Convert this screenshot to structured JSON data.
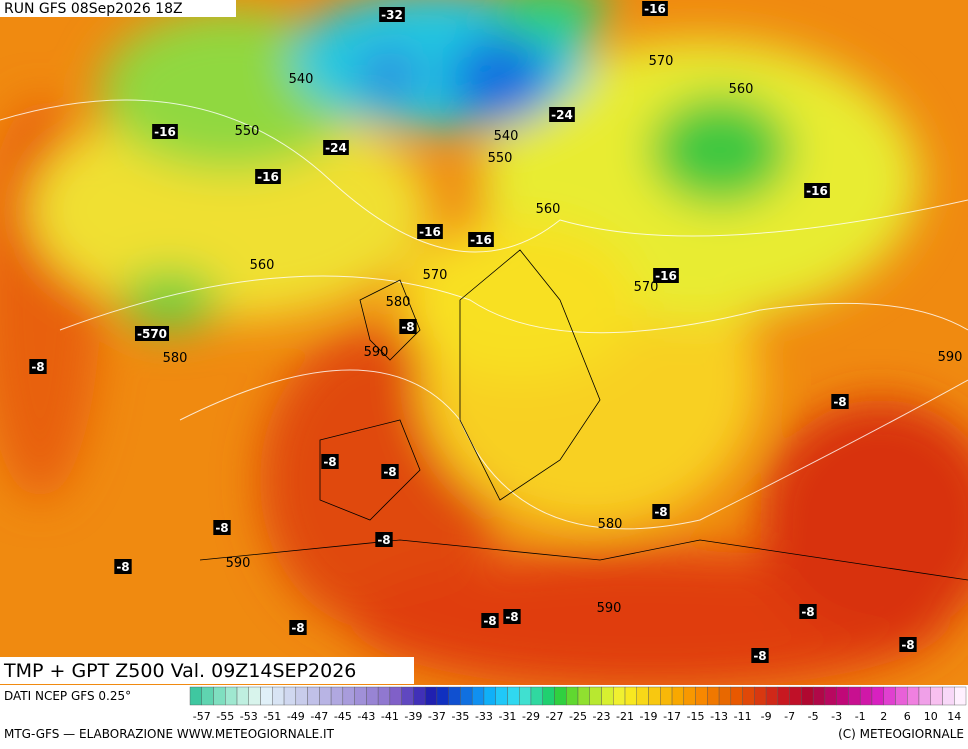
{
  "header": {
    "run": "RUN GFS 08Sep2026 18Z"
  },
  "footer": {
    "title": "TMP + GPT Z500 Val. 09Z14SEP2026",
    "source": "DATI NCEP GFS 0.25°",
    "credit_left": "MTG-GFS — ELABORAZIONE WWW.METEOGIORNALE.IT",
    "credit_right": "(C) METEOGIORNALE"
  },
  "map": {
    "temp_labels": [
      "-32",
      "-16",
      "-16",
      "-24",
      "-16",
      "-24",
      "-16",
      "-16",
      "-16",
      "-16",
      "-8",
      "-8",
      "-8",
      "-8",
      "-8",
      "-8",
      "-8",
      "-8",
      "-8",
      "-8",
      "-8",
      "-8",
      "-8",
      "-8",
      "-8",
      "-570"
    ],
    "height_labels": [
      "540",
      "550",
      "570",
      "560",
      "540",
      "550",
      "560",
      "560",
      "570",
      "570",
      "580",
      "580",
      "590",
      "590",
      "580",
      "590",
      "590"
    ]
  },
  "colorbar": {
    "labels": [
      "-57",
      "-55",
      "-53",
      "-51",
      "-49",
      "-47",
      "-45",
      "-43",
      "-41",
      "-39",
      "-37",
      "-35",
      "-33",
      "-31",
      "-29",
      "-27",
      "-25",
      "-23",
      "-21",
      "-19",
      "-17",
      "-15",
      "-13",
      "-11",
      "-9",
      "-7",
      "-5",
      "-3",
      "-1",
      "2",
      "6",
      "10",
      "14"
    ],
    "colors": [
      "#3fc7a0",
      "#5fd4b0",
      "#7fdfc0",
      "#9fe8d0",
      "#bfefe0",
      "#d8f4ec",
      "#e0f0f8",
      "#d8e4f4",
      "#d0d8f0",
      "#c8cceb",
      "#c0c0e8",
      "#b8b4e4",
      "#b0a8e0",
      "#a89cdc",
      "#a090d8",
      "#9884d4",
      "#9078d0",
      "#8060c8",
      "#6048c0",
      "#4030b8",
      "#2020b0",
      "#1030c0",
      "#1050d0",
      "#1070e0",
      "#1090f0",
      "#10b0f8",
      "#20c8f8",
      "#30d8f0",
      "#40e0d0",
      "#30d8a0",
      "#20d070",
      "#30d040",
      "#60d830",
      "#90e030",
      "#b8e830",
      "#d8f030",
      "#f0f030",
      "#f8e820",
      "#f8d818",
      "#f8c810",
      "#f8b808",
      "#f8a800",
      "#f89800",
      "#f88800",
      "#f07800",
      "#e86800",
      "#e85800",
      "#e04808",
      "#d83810",
      "#d02818",
      "#c81820",
      "#c01028",
      "#b00830",
      "#b00848",
      "#b80860",
      "#c00878",
      "#c81090",
      "#d018a8",
      "#d820c0",
      "#e040d0",
      "#e860d8",
      "#f080e0",
      "#f0a0e8",
      "#f8c0f0",
      "#f8d8f8",
      "#fff0ff"
    ]
  }
}
